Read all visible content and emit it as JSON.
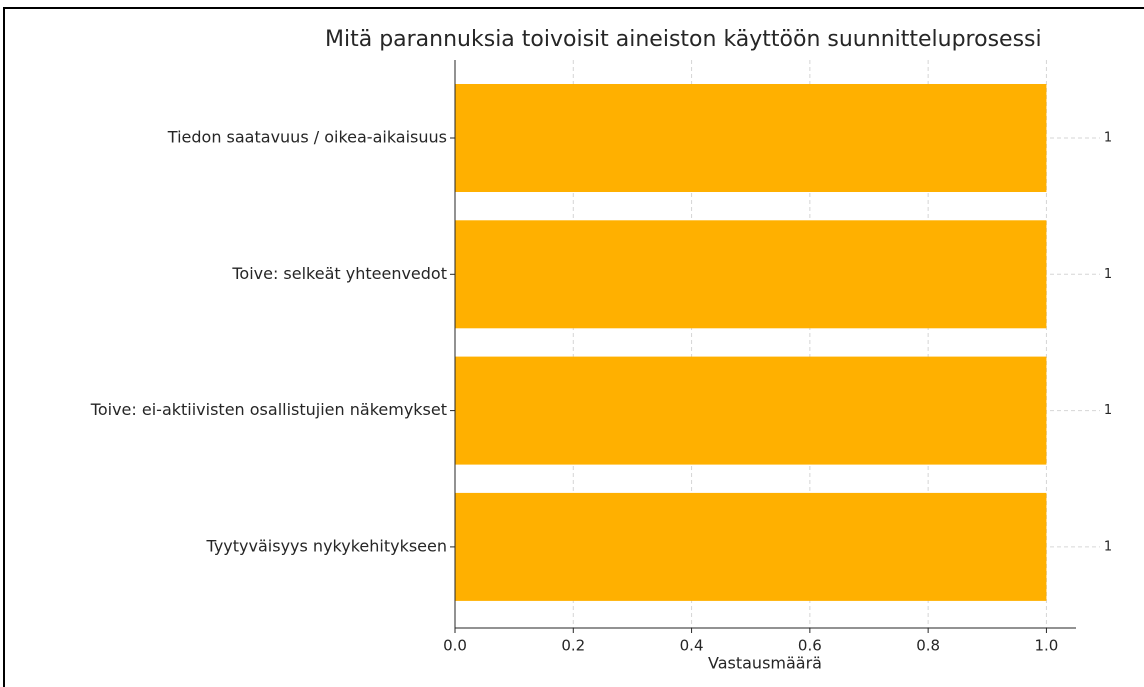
{
  "chart_data": {
    "type": "barh",
    "title": "Mitä parannuksia toivoisit aineiston käyttöön suunnitteluprosessi",
    "categories": [
      "Tiedon saatavuus / oikea-aikaisuus",
      "Toive: selkeät yhteenvedot",
      "Toive: ei-aktiivisten osallistujien näkemykset",
      "Tyytyväisyys nykykehitykseen"
    ],
    "values": [
      1,
      1,
      1,
      1
    ],
    "color": "#ffb000",
    "x_label": "Vastausmäärä",
    "xlim": [
      0,
      1.05
    ],
    "xticks": [
      {
        "value": 0,
        "label": "0.0"
      },
      0.2,
      0.4,
      0.6,
      0.8,
      {
        "value": 1,
        "label": "1.0"
      }
    ],
    "grid": true
  }
}
